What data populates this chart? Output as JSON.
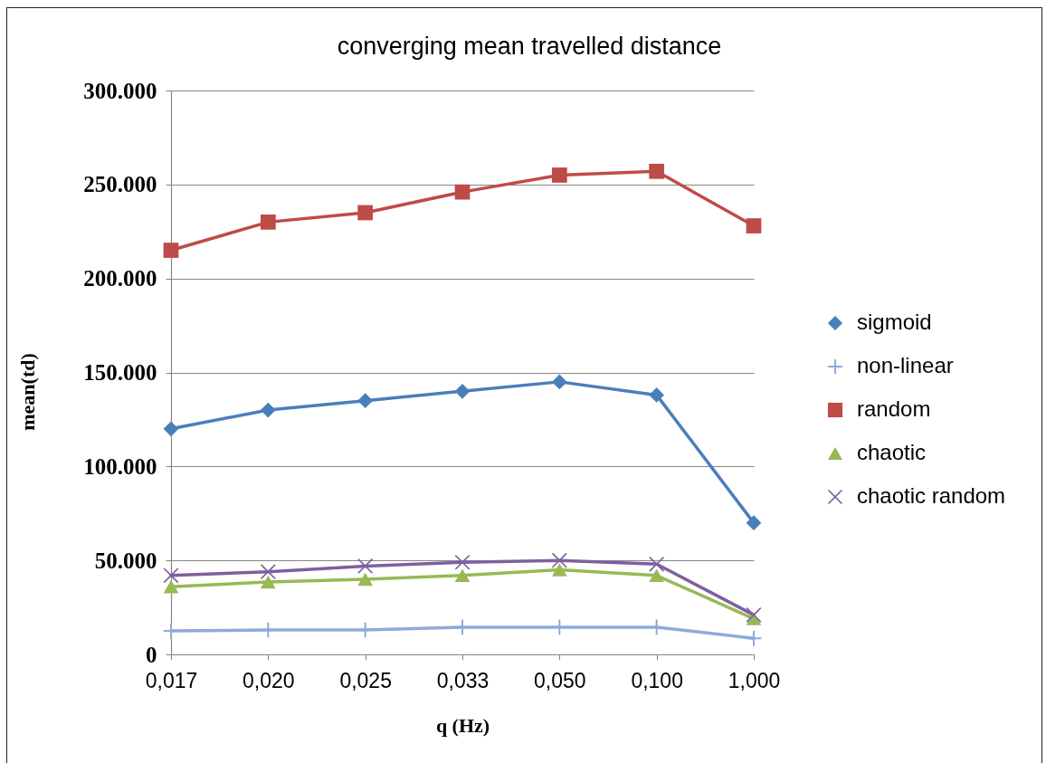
{
  "chart_data": {
    "type": "line",
    "title": "converging mean travelled distance",
    "xlabel": "q (Hz)",
    "ylabel": "mean(td)",
    "categories": [
      "0,017",
      "0,020",
      "0,025",
      "0,033",
      "0,050",
      "0,100",
      "1,000"
    ],
    "series": [
      {
        "name": "sigmoid",
        "color": "#4a7ebb",
        "marker": "diamond",
        "values": [
          120000,
          130000,
          135000,
          140000,
          145000,
          138000,
          70000
        ]
      },
      {
        "name": "non-linear",
        "color": "#8eaadb",
        "marker": "cross",
        "values": [
          12500,
          13000,
          13000,
          14500,
          14500,
          14500,
          8500
        ]
      },
      {
        "name": "random",
        "color": "#be4b48",
        "marker": "square",
        "values": [
          215000,
          230000,
          235000,
          246000,
          255000,
          257000,
          228000
        ]
      },
      {
        "name": "chaotic",
        "color": "#98b954",
        "marker": "triangle",
        "values": [
          36000,
          38500,
          40000,
          42000,
          45000,
          42000,
          19000
        ]
      },
      {
        "name": "chaotic random",
        "color": "#7d60a0",
        "marker": "x",
        "values": [
          42000,
          44000,
          47000,
          49000,
          50000,
          48000,
          21000
        ]
      }
    ],
    "ylim": [
      0,
      300000
    ],
    "yticks": [
      0,
      {
        "value": 50000,
        "label": "50.000"
      },
      {
        "value": 100000,
        "label": "100.000"
      },
      {
        "value": 150000,
        "label": "150.000"
      },
      {
        "value": 200000,
        "label": "200.000"
      },
      {
        "value": 250000,
        "label": "250.000"
      },
      {
        "value": 300000,
        "label": "300.000"
      }
    ],
    "grid": "y",
    "legend": "right",
    "line_style": "solid"
  }
}
